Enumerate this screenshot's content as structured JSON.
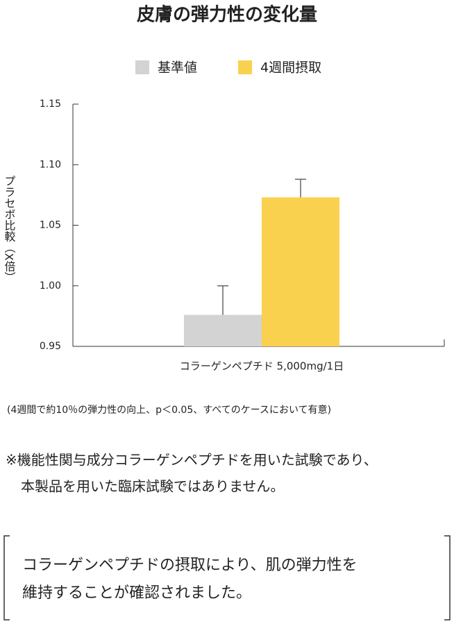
{
  "chart_data": {
    "type": "bar",
    "title": "皮膚の弾力性の変化量",
    "y_label": "プラセボ比較（X倍）",
    "categories": [
      "コラーゲンペプチド 5,000mg/1日"
    ],
    "series": [
      {
        "name": "基準値",
        "color": "#d3d3d3",
        "values": [
          0.976
        ],
        "errors": [
          0.024
        ]
      },
      {
        "name": "4週間摂取",
        "color": "#fad14f",
        "values": [
          1.073
        ],
        "errors": [
          0.015
        ]
      }
    ],
    "ylim": [
      0.95,
      1.15
    ],
    "yticks": [
      0.95,
      {
        "value": 1.0,
        "label": "1.00"
      },
      1.05,
      {
        "value": 1.1,
        "label": "1.10"
      },
      1.15
    ]
  },
  "footnote": "(4週間で約10％の弾力性の向上、p＜0.05、すべてのケースにおいて有意)",
  "notes": [
    "※機能性関与成分コラーゲンペプチドを用いた試験であり、",
    "本製品を用いた臨床試験ではありません。"
  ],
  "conclusion": [
    "コラーゲンペプチドの摂取により、肌の弾力性を",
    "維持することが確認されました。"
  ]
}
